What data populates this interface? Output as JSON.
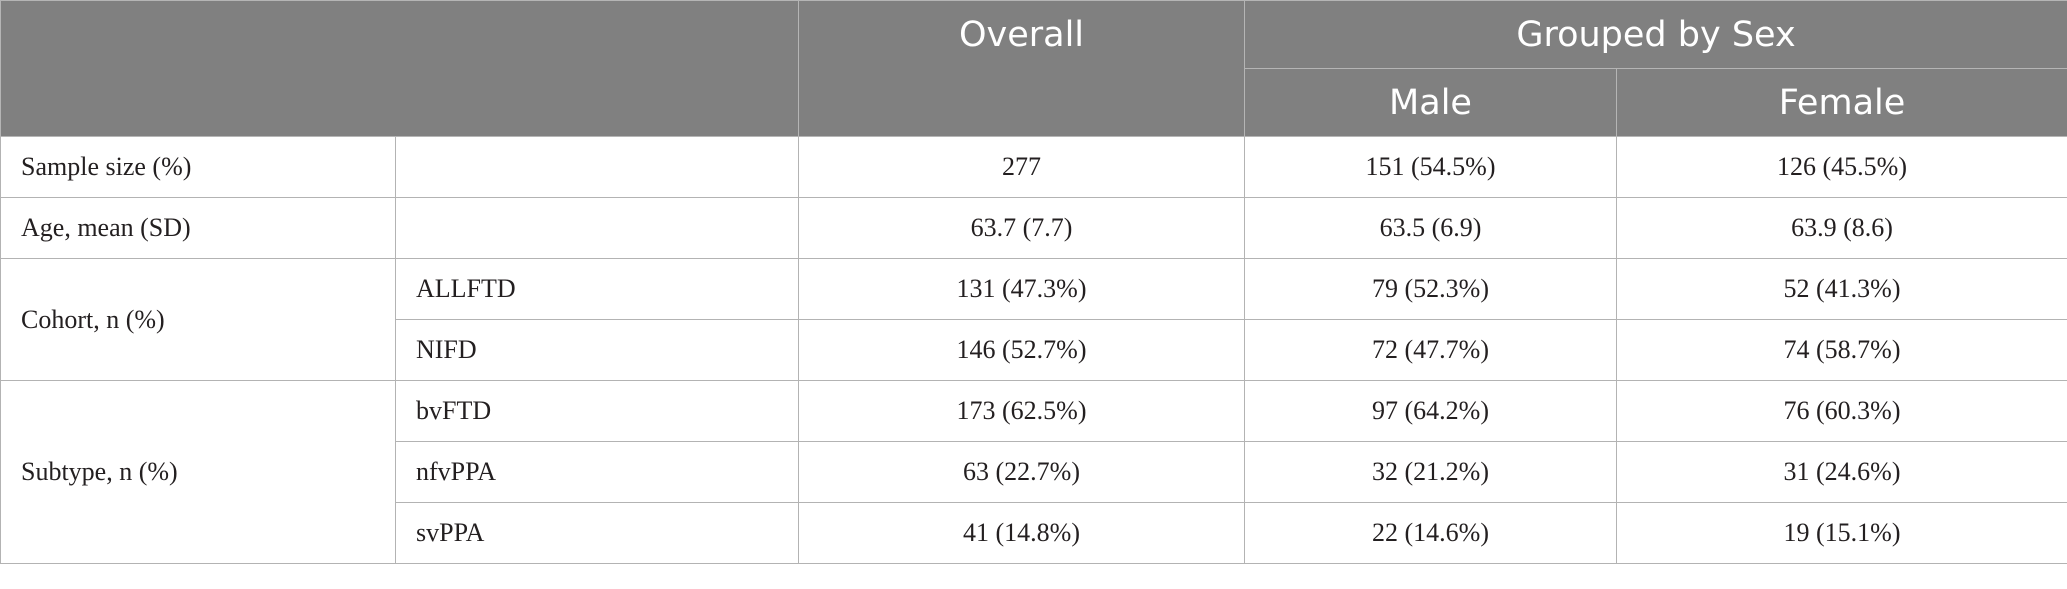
{
  "header": {
    "overall": "Overall",
    "grouped_by_sex": "Grouped by Sex",
    "male": "Male",
    "female": "Female"
  },
  "rows": [
    {
      "label": "Sample size (%)",
      "sub": "",
      "overall": "277",
      "male": "151 (54.5%)",
      "female": "126 (45.5%)"
    },
    {
      "label": "Age, mean (SD)",
      "sub": "",
      "overall": "63.7 (7.7)",
      "male": "63.5 (6.9)",
      "female": "63.9 (8.6)"
    },
    {
      "label": "Cohort, n (%)",
      "sub": "ALLFTD",
      "overall": "131 (47.3%)",
      "male": "79 (52.3%)",
      "female": "52 (41.3%)"
    },
    {
      "label": "",
      "sub": "NIFD",
      "overall": "146 (52.7%)",
      "male": "72 (47.7%)",
      "female": "74 (58.7%)"
    },
    {
      "label": "Subtype, n (%)",
      "sub": "bvFTD",
      "overall": "173 (62.5%)",
      "male": "97 (64.2%)",
      "female": "76 (60.3%)"
    },
    {
      "label": "",
      "sub": "nfvPPA",
      "overall": "63 (22.7%)",
      "male": "32 (21.2%)",
      "female": "31 (24.6%)"
    },
    {
      "label": "",
      "sub": "svPPA",
      "overall": "41 (14.8%)",
      "male": "22 (14.6%)",
      "female": "19 (15.1%)"
    }
  ]
}
